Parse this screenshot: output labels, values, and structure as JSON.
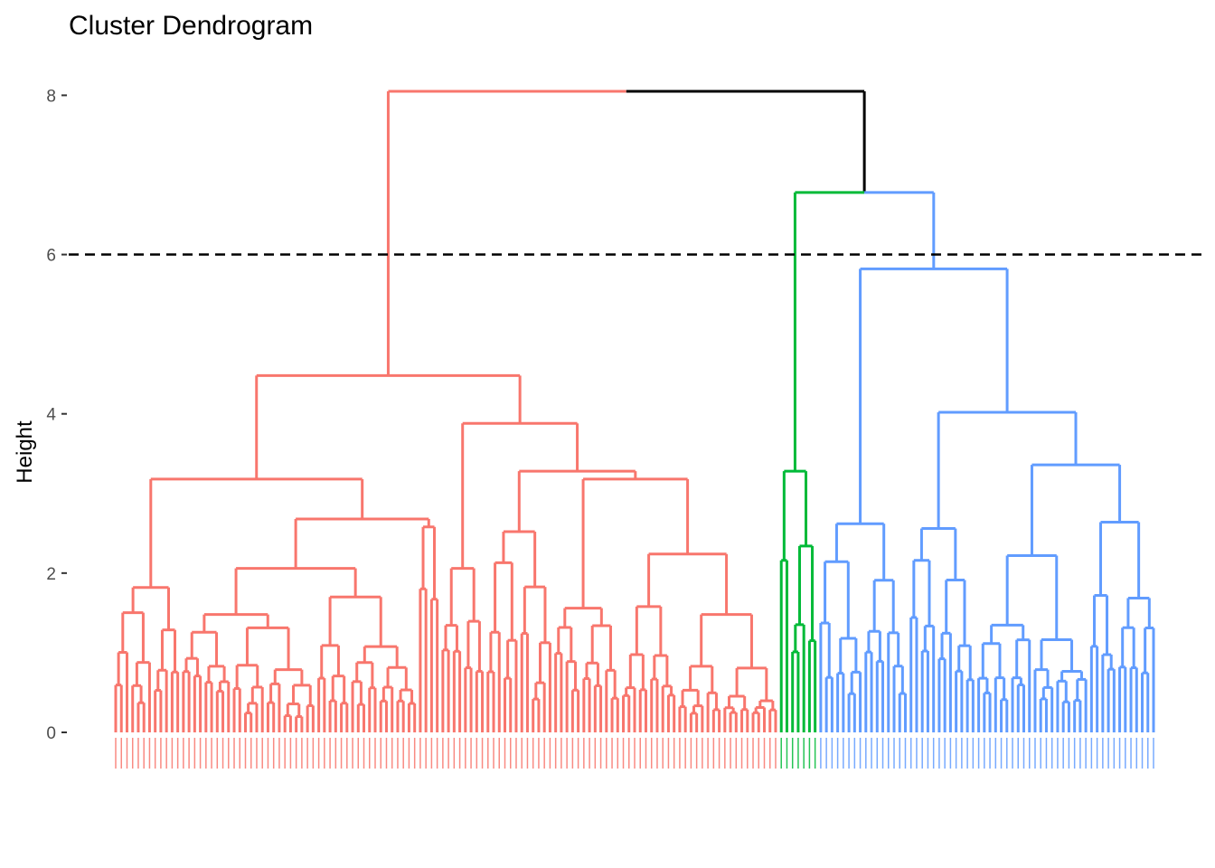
{
  "chart_data": {
    "type": "dendrogram",
    "title": "Cluster Dendrogram",
    "xlabel": "",
    "ylabel": "Height",
    "ylim": [
      0,
      8
    ],
    "yticks": [
      0,
      2,
      4,
      6,
      8
    ],
    "cut_height": 6,
    "grid": false,
    "legend": "none",
    "colors": {
      "root": "#000000",
      "red": "#F8766D",
      "green": "#00BA38",
      "blue": "#619CFF"
    },
    "tree": {
      "h": 8.05,
      "color": "root",
      "children": [
        {
          "h": 4.48,
          "color": "red",
          "children": [
            {
              "h": 3.18,
              "children": [
                {
                  "h": 1.82,
                  "n": 12
                },
                {
                  "h": 2.68,
                  "children": [
                    {
                      "h": 2.06,
                      "children": [
                        {
                          "h": 1.48,
                          "n": 24
                        },
                        {
                          "h": 1.7,
                          "n": 18
                        }
                      ]
                    },
                    {
                      "h": 2.58,
                      "n": 4
                    }
                  ]
                }
              ]
            },
            {
              "h": 3.88,
              "children": [
                {
                  "h": 2.06,
                  "n": 8
                },
                {
                  "h": 3.28,
                  "children": [
                    {
                      "h": 2.52,
                      "n": 12
                    },
                    {
                      "h": 3.18,
                      "children": [
                        {
                          "h": 1.56,
                          "n": 12
                        },
                        {
                          "h": 2.24,
                          "children": [
                            {
                              "h": 1.58,
                              "n": 10
                            },
                            {
                              "h": 1.48,
                              "n": 18
                            }
                          ]
                        }
                      ]
                    }
                  ]
                }
              ]
            }
          ]
        },
        {
          "h": 6.78,
          "children": [
            {
              "h": 3.28,
              "color": "green",
              "children": [
                {
                  "h": 2.16,
                  "n": 2
                },
                {
                  "h": 2.34,
                  "n": 5
                }
              ]
            },
            {
              "h": 5.82,
              "color": "blue",
              "children": [
                {
                  "h": 2.62,
                  "n": 16
                },
                {
                  "h": 4.02,
                  "children": [
                    {
                      "h": 2.56,
                      "n": 12
                    },
                    {
                      "h": 3.36,
                      "children": [
                        {
                          "h": 2.22,
                          "n": 20
                        },
                        {
                          "h": 2.64,
                          "n": 12
                        }
                      ]
                    }
                  ]
                }
              ]
            }
          ]
        }
      ]
    }
  }
}
